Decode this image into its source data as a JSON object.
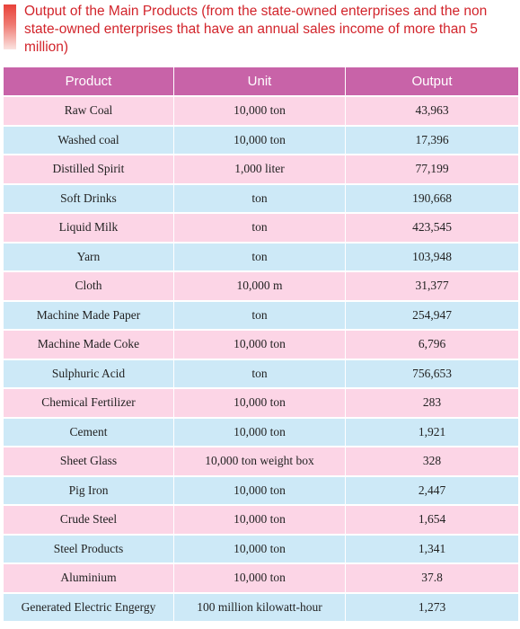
{
  "title": "Output of the Main Products (from the state-owned enterprises and the non state-owned enterprises that have an annual sales income of more than 5 million)",
  "colors": {
    "title_text": "#d2242b",
    "header_bg": "#c863a8",
    "row_pink": "#fcd5e6",
    "row_blue": "#cde9f7"
  },
  "table": {
    "headers": [
      "Product",
      "Unit",
      "Output"
    ],
    "rows": [
      {
        "product": "Raw Coal",
        "unit": "10,000 ton",
        "output": "43,963"
      },
      {
        "product": "Washed coal",
        "unit": "10,000 ton",
        "output": "17,396"
      },
      {
        "product": "Distilled Spirit",
        "unit": "1,000 liter",
        "output": "77,199"
      },
      {
        "product": "Soft Drinks",
        "unit": "ton",
        "output": "190,668"
      },
      {
        "product": "Liquid Milk",
        "unit": "ton",
        "output": "423,545"
      },
      {
        "product": "Yarn",
        "unit": "ton",
        "output": "103,948"
      },
      {
        "product": "Cloth",
        "unit": "10,000 m",
        "output": "31,377"
      },
      {
        "product": "Machine Made Paper",
        "unit": "ton",
        "output": "254,947"
      },
      {
        "product": "Machine Made Coke",
        "unit": "10,000 ton",
        "output": "6,796"
      },
      {
        "product": "Sulphuric Acid",
        "unit": "ton",
        "output": "756,653"
      },
      {
        "product": "Chemical Fertilizer",
        "unit": "10,000 ton",
        "output": "283"
      },
      {
        "product": "Cement",
        "unit": "10,000 ton",
        "output": "1,921"
      },
      {
        "product": "Sheet Glass",
        "unit": "10,000 ton weight box",
        "output": "328"
      },
      {
        "product": "Pig Iron",
        "unit": "10,000 ton",
        "output": "2,447"
      },
      {
        "product": "Crude Steel",
        "unit": "10,000 ton",
        "output": "1,654"
      },
      {
        "product": "Steel Products",
        "unit": "10,000 ton",
        "output": "1,341"
      },
      {
        "product": "Aluminium",
        "unit": "10,000 ton",
        "output": "37.8"
      },
      {
        "product": "Generated Electric Engergy",
        "unit": "100 million kilowatt-hour",
        "output": "1,273"
      }
    ]
  }
}
